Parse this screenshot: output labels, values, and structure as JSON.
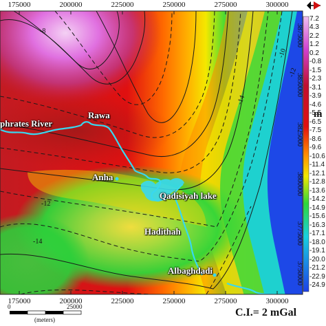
{
  "x_axis_top": [
    "175000",
    "200000",
    "225000",
    "250000",
    "275000",
    "300000"
  ],
  "x_axis_bottom": [
    "175000",
    "200000",
    "225000",
    "250000",
    "275000",
    "300000"
  ],
  "y_axis_right": [
    "3875000",
    "3850000",
    "3825000",
    "3800000",
    "3775000",
    "3750000"
  ],
  "unit_label": "m",
  "interval_note": "C.I.= 2 mGal",
  "places": {
    "river": "phrates River",
    "rawa": "Rawa",
    "anha": "Anha",
    "lake": "Qadisiyah lake",
    "haditha": "Hadithah",
    "albaghdadi": "Albaghdadi"
  },
  "contour_labels": [
    "-8",
    "-10",
    "-12",
    "-14",
    "-12",
    "-14"
  ],
  "legend_values": [
    "7.2",
    "4.3",
    "2.2",
    "1.2",
    "0.2",
    "-0.8",
    "-1.5",
    "-2.3",
    "-3.1",
    "-3.9",
    "-4.6",
    "-5.5",
    "-6.5",
    "-7.5",
    "-8.6",
    "-9.6",
    "-10.6",
    "-11.4",
    "-12.1",
    "-12.8",
    "-13.6",
    "-14.2",
    "-14.9",
    "-15.6",
    "-16.3",
    "-17.1",
    "-18.0",
    "-19.1",
    "-20.0",
    "-21.2",
    "-22.9",
    "-24.9"
  ],
  "scale_bar": {
    "labels": [
      "0",
      "25000"
    ],
    "unit": "(meters)"
  },
  "colors": {
    "magenta": "#d63ad6",
    "red": "#e01010",
    "orange": "#ff8a00",
    "yellow": "#f4e800",
    "green": "#2fd63a",
    "cyan": "#18d0e0",
    "blue": "#1e40e8",
    "water": "#38d8f0"
  }
}
